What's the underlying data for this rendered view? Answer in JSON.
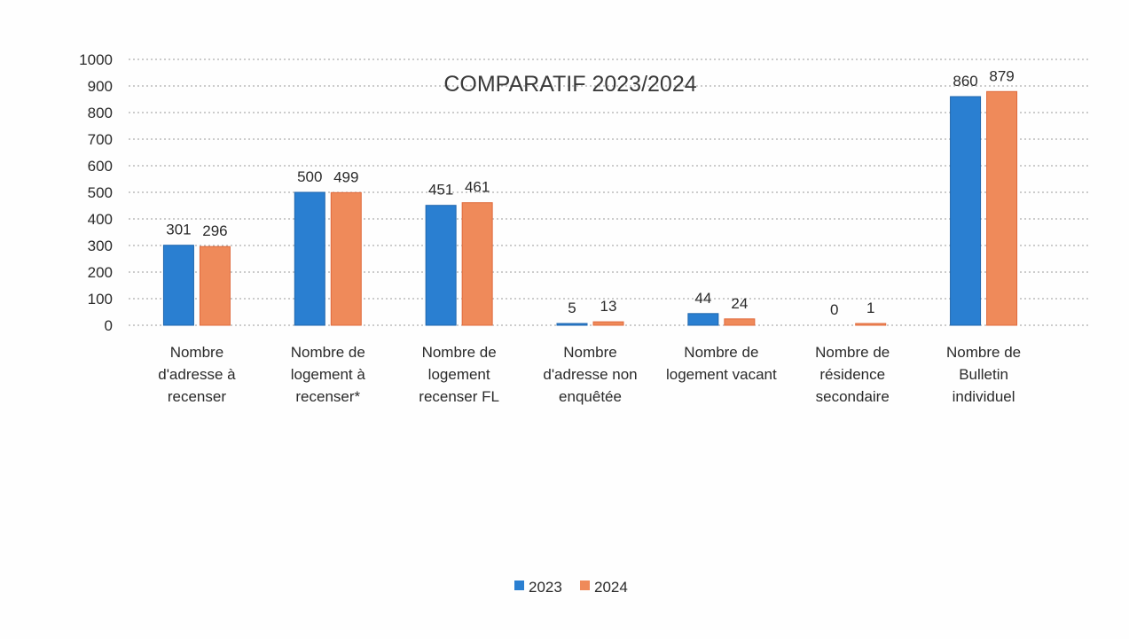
{
  "chart_data": {
    "type": "bar",
    "title": "COMPARATIF 2023/2024",
    "categories": [
      [
        "Nombre",
        "d'adresse à",
        "recenser"
      ],
      [
        "Nombre de",
        "logement à",
        "recenser*"
      ],
      [
        "Nombre de",
        "logement",
        "recenser FL"
      ],
      [
        "Nombre",
        "d'adresse non",
        "enquêtée"
      ],
      [
        "Nombre de",
        "logement vacant"
      ],
      [
        "Nombre de",
        "résidence",
        "secondaire"
      ],
      [
        "Nombre de",
        "Bulletin",
        "individuel"
      ]
    ],
    "series": [
      {
        "name": "2023",
        "color": "#2a7fd1",
        "values": [
          301,
          500,
          451,
          5,
          44,
          0,
          860
        ],
        "labels": [
          "301",
          "500",
          "451",
          "5",
          "44",
          "0",
          "860"
        ]
      },
      {
        "name": "2024",
        "color": "#ef8a5a",
        "values": [
          296,
          499,
          461,
          13,
          24,
          1,
          879
        ],
        "labels": [
          "296",
          "499",
          "461",
          "13",
          "24",
          "1",
          "879"
        ]
      }
    ],
    "ylim": [
      0,
      1000
    ],
    "yticks": [
      0,
      100,
      200,
      300,
      400,
      500,
      600,
      700,
      800,
      900,
      1000
    ],
    "ytick_labels": [
      "0",
      "100",
      "200",
      "300",
      "400",
      "500",
      "600",
      "700",
      "800",
      "900",
      "1000"
    ],
    "xlabel": "",
    "ylabel": "",
    "grid": true,
    "legend_position": "bottom-center"
  }
}
